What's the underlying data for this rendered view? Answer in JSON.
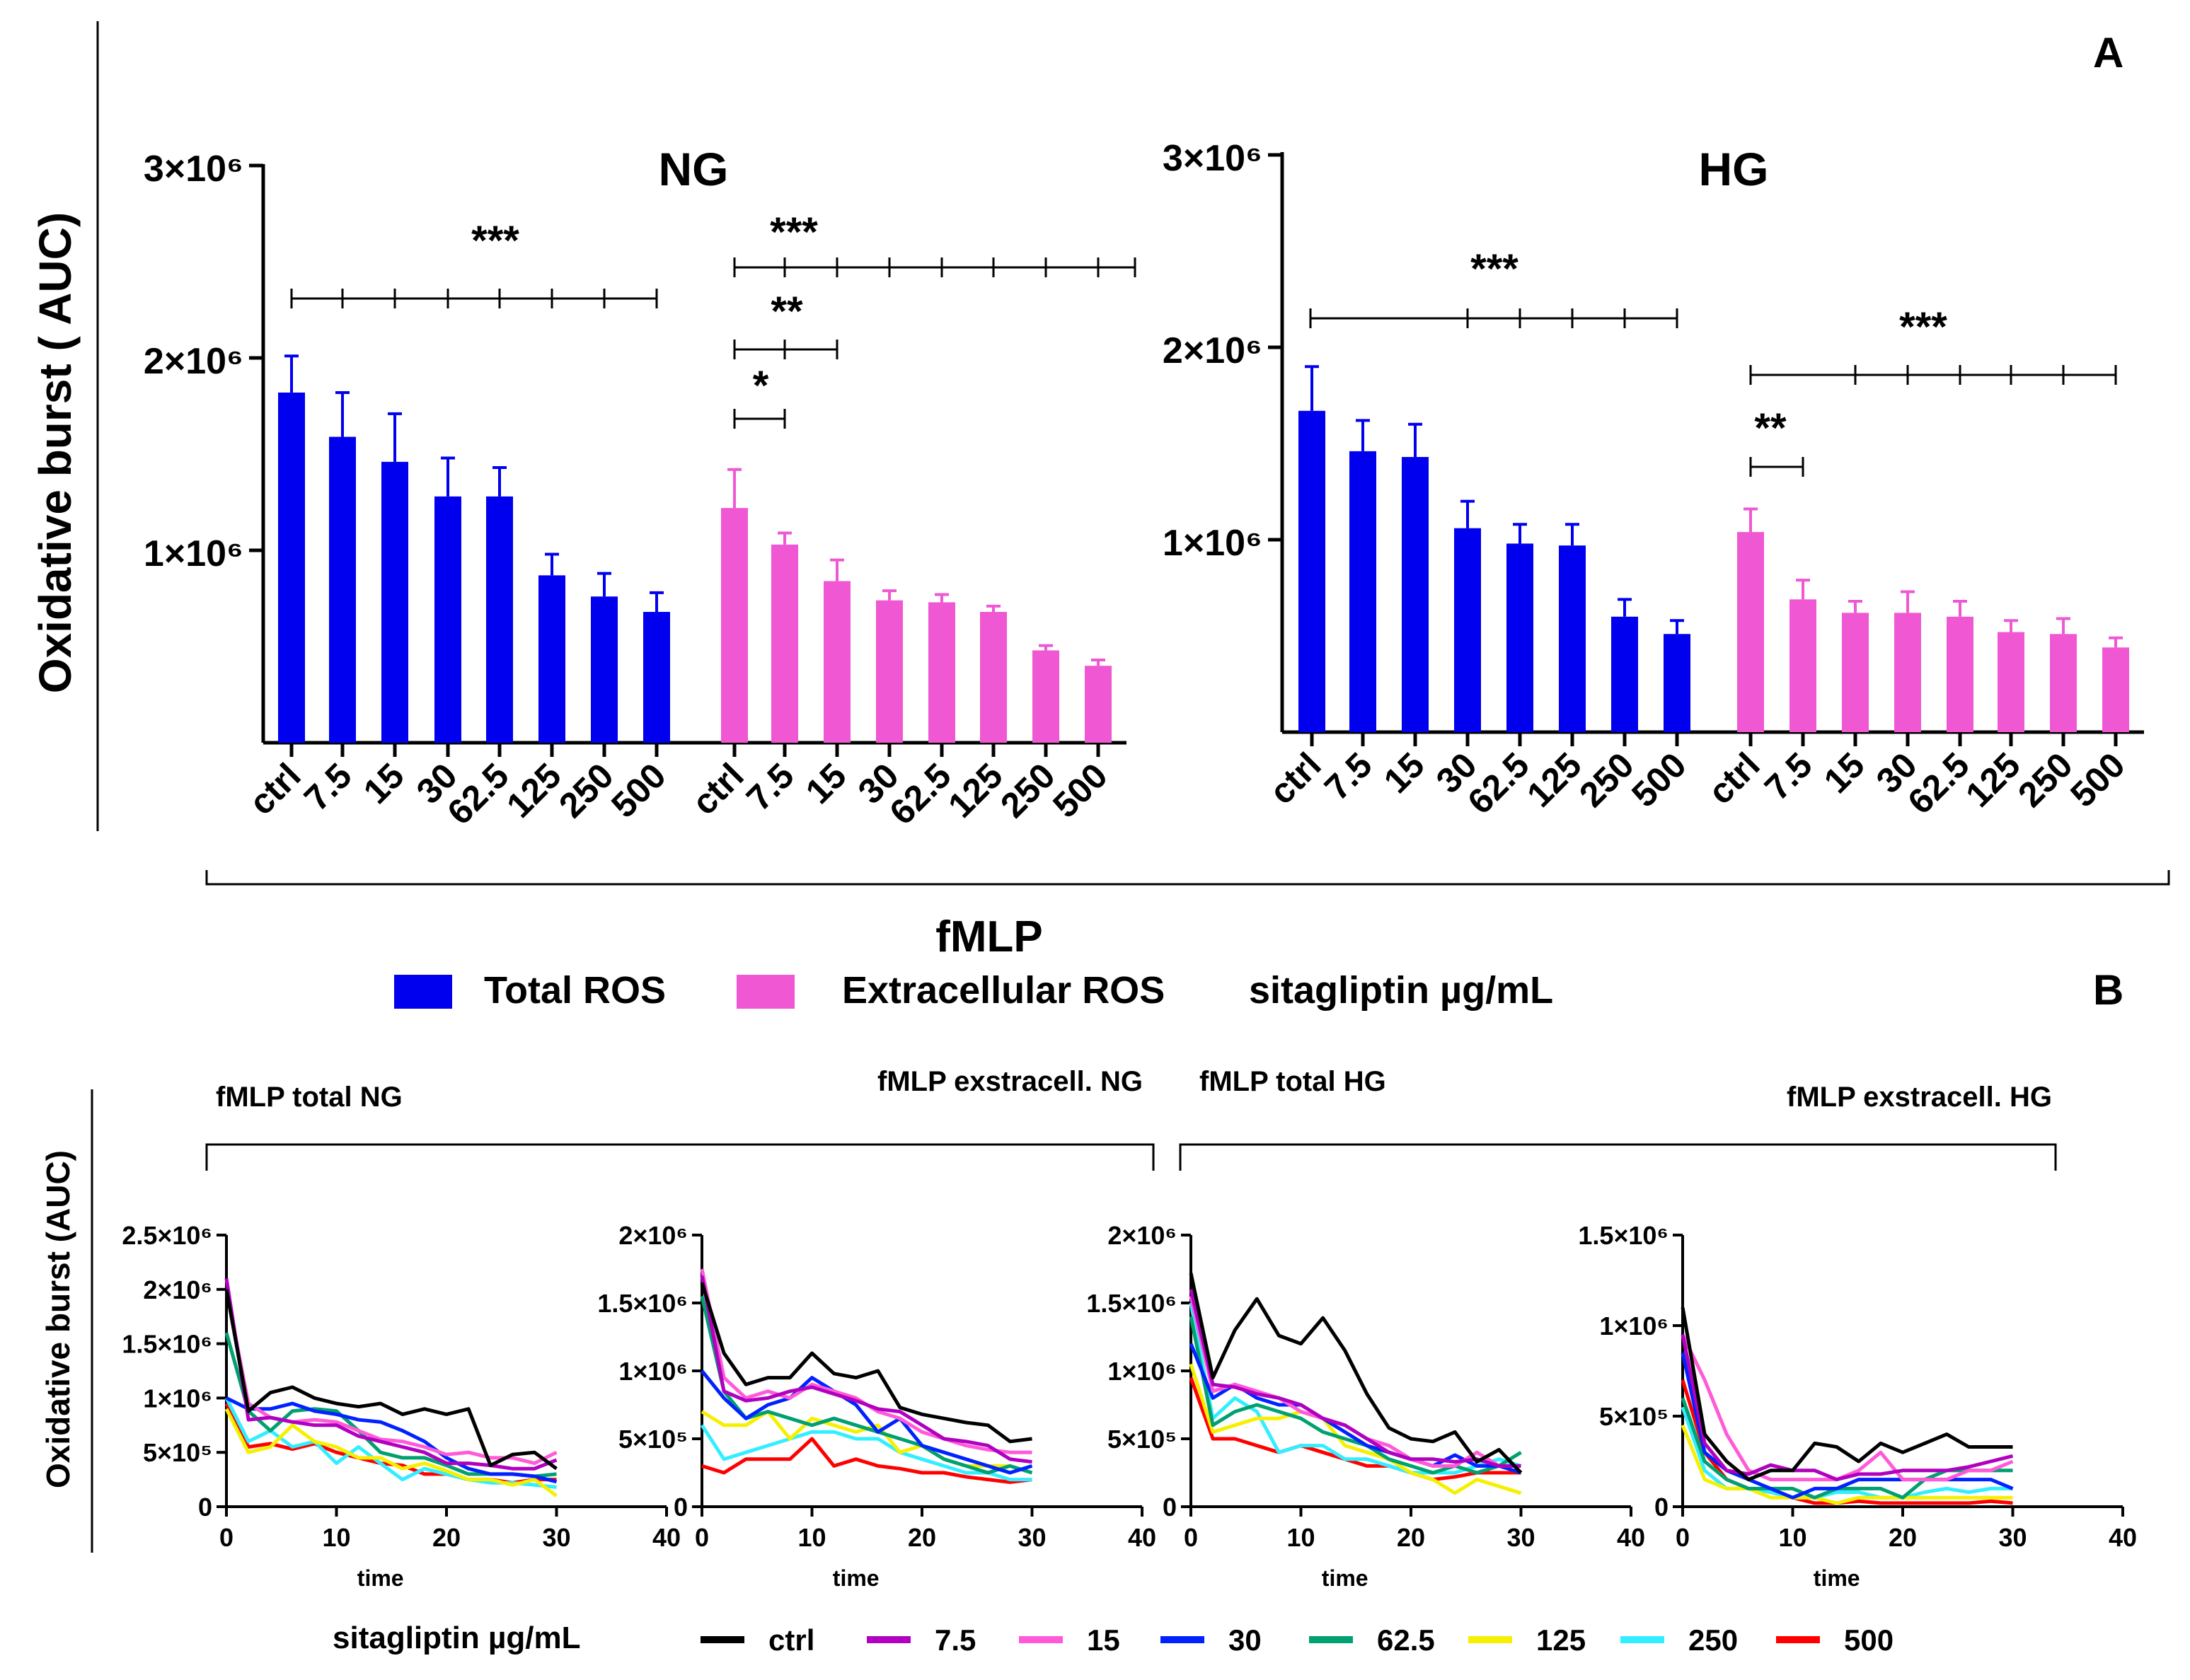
{
  "panel_labels": {
    "a": "A",
    "b": "B"
  },
  "top_ylabel": "Oxidative burst ( AUC)",
  "bottom_ylabel": "Oxidative burst (AUC)",
  "fmlp_label": "fMLP",
  "legend_top": {
    "total": "Total ROS",
    "extra": "Extracellular ROS",
    "unit": "sitagliptin µg/mL"
  },
  "colors": {
    "total": "#0000ee",
    "extra": "#ef58d2"
  },
  "line_colors": {
    "ctrl": "#000000",
    "7.5": "#b000c0",
    "15": "#ff5ad8",
    "30": "#0022ff",
    "62.5": "#00a070",
    "125": "#f6f000",
    "250": "#33eeff",
    "500": "#ff0000"
  },
  "line_legend": {
    "title": "sitagliptin µg/mL",
    "labels": [
      "ctrl",
      "7.5",
      "15",
      "30",
      "62.5",
      "125",
      "250",
      "500"
    ]
  },
  "chart_data": [
    {
      "type": "bar",
      "title": "NG",
      "ylabel": "Oxidative burst ( AUC)",
      "ylim": [
        0,
        3000000
      ],
      "yticks": [
        "1×10⁶",
        "2×10⁶",
        "3×10⁶"
      ],
      "categories": [
        "ctrl",
        "7.5",
        "15",
        "30",
        "62.5",
        "125",
        "250",
        "500"
      ],
      "series": [
        {
          "name": "Total ROS",
          "values": [
            1820000,
            1590000,
            1460000,
            1280000,
            1280000,
            870000,
            760000,
            680000
          ],
          "errors": [
            190000,
            230000,
            250000,
            200000,
            150000,
            110000,
            120000,
            100000
          ]
        },
        {
          "name": "Extracellular ROS",
          "values": [
            1220000,
            1030000,
            840000,
            740000,
            730000,
            680000,
            480000,
            400000
          ],
          "errors": [
            200000,
            60000,
            110000,
            50000,
            40000,
            30000,
            25000,
            30000
          ]
        }
      ],
      "significance": [
        {
          "label": "***",
          "series": "Total ROS"
        },
        {
          "label": "***",
          "series": "Extracellular ROS"
        },
        {
          "label": "**",
          "series": "Extracellular ROS"
        },
        {
          "label": "*",
          "series": "Extracellular ROS"
        }
      ]
    },
    {
      "type": "bar",
      "title": "HG",
      "ylabel": "Oxidative burst ( AUC)",
      "ylim": [
        0,
        3000000
      ],
      "yticks": [
        "1×10⁶",
        "2×10⁶",
        "3×10⁶"
      ],
      "categories": [
        "ctrl",
        "7.5",
        "15",
        "30",
        "62.5",
        "125",
        "250",
        "500"
      ],
      "series": [
        {
          "name": "Total ROS",
          "values": [
            1670000,
            1460000,
            1430000,
            1060000,
            980000,
            970000,
            600000,
            510000
          ],
          "errors": [
            230000,
            160000,
            170000,
            140000,
            100000,
            110000,
            90000,
            70000
          ]
        },
        {
          "name": "Extracellular ROS",
          "values": [
            1040000,
            690000,
            620000,
            620000,
            600000,
            520000,
            510000,
            440000
          ],
          "errors": [
            120000,
            100000,
            60000,
            110000,
            80000,
            60000,
            80000,
            50000
          ]
        }
      ],
      "significance": [
        {
          "label": "***",
          "series": "Total ROS"
        },
        {
          "label": "***",
          "series": "Extracellular ROS"
        },
        {
          "label": "**",
          "series": "Extracellular ROS"
        }
      ]
    },
    {
      "type": "line",
      "title": "fMLP total NG",
      "xlabel": "time",
      "ylabel": "Oxidative burst (AUC)",
      "xlim": [
        0,
        40
      ],
      "ylim": [
        0,
        2500000
      ],
      "xticks": [
        "0",
        "10",
        "20",
        "30",
        "40"
      ],
      "yticks": [
        "0",
        "5×10⁵",
        "1×10⁶",
        "1.5×10⁶",
        "2×10⁶",
        "2.5×10⁶"
      ],
      "x": [
        0,
        2,
        4,
        6,
        8,
        10,
        12,
        14,
        16,
        18,
        20,
        22,
        24,
        26,
        28,
        30
      ],
      "series": [
        {
          "name": "ctrl",
          "values": [
            2000000,
            880000,
            1050000,
            1100000,
            1000000,
            950000,
            920000,
            950000,
            850000,
            900000,
            850000,
            900000,
            380000,
            480000,
            500000,
            350000
          ]
        },
        {
          "name": "7.5",
          "values": [
            2100000,
            800000,
            820000,
            780000,
            750000,
            750000,
            650000,
            600000,
            550000,
            500000,
            400000,
            400000,
            380000,
            350000,
            350000,
            430000
          ]
        },
        {
          "name": "15",
          "values": [
            2000000,
            950000,
            820000,
            780000,
            800000,
            780000,
            700000,
            620000,
            600000,
            550000,
            480000,
            500000,
            450000,
            450000,
            400000,
            500000
          ]
        },
        {
          "name": "30",
          "values": [
            1000000,
            900000,
            900000,
            950000,
            880000,
            850000,
            800000,
            780000,
            700000,
            600000,
            450000,
            350000,
            300000,
            300000,
            280000,
            230000
          ]
        },
        {
          "name": "62.5",
          "values": [
            1600000,
            880000,
            700000,
            880000,
            900000,
            880000,
            700000,
            500000,
            450000,
            450000,
            380000,
            300000,
            300000,
            300000,
            280000,
            300000
          ]
        },
        {
          "name": "125",
          "values": [
            900000,
            500000,
            550000,
            750000,
            600000,
            550000,
            450000,
            450000,
            350000,
            400000,
            330000,
            250000,
            250000,
            200000,
            250000,
            100000
          ]
        },
        {
          "name": "250",
          "values": [
            1000000,
            600000,
            700000,
            550000,
            600000,
            400000,
            550000,
            400000,
            250000,
            350000,
            300000,
            250000,
            220000,
            220000,
            200000,
            180000
          ]
        },
        {
          "name": "500",
          "values": [
            950000,
            550000,
            580000,
            530000,
            580000,
            500000,
            450000,
            400000,
            380000,
            300000,
            300000,
            250000,
            250000,
            220000,
            250000,
            250000
          ]
        }
      ]
    },
    {
      "type": "line",
      "title": "fMLP exstracell. NG",
      "xlabel": "time",
      "ylabel": "Oxidative burst (AUC)",
      "xlim": [
        0,
        40
      ],
      "ylim": [
        0,
        2000000
      ],
      "xticks": [
        "0",
        "10",
        "20",
        "30",
        "40"
      ],
      "yticks": [
        "0",
        "5×10⁵",
        "1×10⁶",
        "1.5×10⁶",
        "2×10⁶"
      ],
      "x": [
        0,
        2,
        4,
        6,
        8,
        10,
        12,
        14,
        16,
        18,
        20,
        22,
        24,
        26,
        28,
        30
      ],
      "series": [
        {
          "name": "ctrl",
          "values": [
            1650000,
            1130000,
            900000,
            950000,
            950000,
            1130000,
            980000,
            950000,
            1000000,
            730000,
            680000,
            650000,
            620000,
            600000,
            480000,
            500000
          ]
        },
        {
          "name": "7.5",
          "values": [
            1700000,
            850000,
            780000,
            800000,
            850000,
            880000,
            830000,
            780000,
            720000,
            700000,
            600000,
            500000,
            480000,
            450000,
            350000,
            330000
          ]
        },
        {
          "name": "15",
          "values": [
            1750000,
            950000,
            800000,
            850000,
            800000,
            900000,
            850000,
            800000,
            700000,
            650000,
            550000,
            500000,
            450000,
            420000,
            400000,
            400000
          ]
        },
        {
          "name": "30",
          "values": [
            1000000,
            800000,
            650000,
            750000,
            800000,
            950000,
            850000,
            750000,
            550000,
            650000,
            450000,
            400000,
            350000,
            300000,
            250000,
            300000
          ]
        },
        {
          "name": "62.5",
          "values": [
            1550000,
            850000,
            650000,
            700000,
            650000,
            600000,
            650000,
            600000,
            550000,
            500000,
            450000,
            350000,
            300000,
            250000,
            300000,
            250000
          ]
        },
        {
          "name": "125",
          "values": [
            700000,
            600000,
            600000,
            700000,
            500000,
            650000,
            600000,
            550000,
            600000,
            400000,
            450000,
            350000,
            300000,
            300000,
            300000,
            250000
          ]
        },
        {
          "name": "250",
          "values": [
            600000,
            350000,
            400000,
            450000,
            500000,
            550000,
            550000,
            500000,
            500000,
            400000,
            350000,
            300000,
            250000,
            250000,
            200000,
            200000
          ]
        },
        {
          "name": "500",
          "values": [
            300000,
            250000,
            350000,
            350000,
            350000,
            500000,
            300000,
            350000,
            300000,
            280000,
            250000,
            250000,
            220000,
            200000,
            180000,
            200000
          ]
        }
      ]
    },
    {
      "type": "line",
      "title": "fMLP total HG",
      "xlabel": "time",
      "ylabel": "Oxidative burst (AUC)",
      "xlim": [
        0,
        40
      ],
      "ylim": [
        0,
        2000000
      ],
      "xticks": [
        "0",
        "10",
        "20",
        "30",
        "40"
      ],
      "yticks": [
        "0",
        "5×10⁵",
        "1×10⁶",
        "1.5×10⁶",
        "2×10⁶"
      ],
      "x": [
        0,
        2,
        4,
        6,
        8,
        10,
        12,
        14,
        16,
        18,
        20,
        22,
        24,
        26,
        28,
        30
      ],
      "series": [
        {
          "name": "ctrl",
          "values": [
            1720000,
            950000,
            1300000,
            1530000,
            1260000,
            1200000,
            1390000,
            1150000,
            830000,
            580000,
            500000,
            480000,
            550000,
            330000,
            420000,
            250000
          ]
        },
        {
          "name": "7.5",
          "values": [
            1600000,
            900000,
            880000,
            830000,
            800000,
            750000,
            650000,
            600000,
            500000,
            400000,
            350000,
            350000,
            330000,
            350000,
            300000,
            300000
          ]
        },
        {
          "name": "15",
          "values": [
            1550000,
            850000,
            900000,
            850000,
            800000,
            700000,
            650000,
            600000,
            500000,
            450000,
            350000,
            300000,
            300000,
            400000,
            300000,
            300000
          ]
        },
        {
          "name": "30",
          "values": [
            1200000,
            800000,
            900000,
            800000,
            750000,
            750000,
            650000,
            550000,
            450000,
            400000,
            350000,
            300000,
            380000,
            300000,
            300000,
            250000
          ]
        },
        {
          "name": "62.5",
          "values": [
            1400000,
            600000,
            700000,
            750000,
            700000,
            650000,
            550000,
            500000,
            450000,
            350000,
            300000,
            250000,
            300000,
            250000,
            300000,
            400000
          ]
        },
        {
          "name": "125",
          "values": [
            1050000,
            550000,
            600000,
            650000,
            650000,
            700000,
            650000,
            450000,
            400000,
            350000,
            250000,
            200000,
            100000,
            200000,
            150000,
            100000
          ]
        },
        {
          "name": "250",
          "values": [
            1500000,
            650000,
            800000,
            700000,
            400000,
            450000,
            450000,
            350000,
            350000,
            300000,
            250000,
            250000,
            250000,
            300000,
            350000,
            300000
          ]
        },
        {
          "name": "500",
          "values": [
            950000,
            500000,
            500000,
            450000,
            400000,
            450000,
            400000,
            350000,
            300000,
            300000,
            250000,
            200000,
            220000,
            250000,
            250000,
            250000
          ]
        }
      ]
    },
    {
      "type": "line",
      "title": "fMLP exstracell. HG",
      "xlabel": "time",
      "ylabel": "Oxidative burst (AUC)",
      "xlim": [
        0,
        40
      ],
      "ylim": [
        0,
        1500000
      ],
      "xticks": [
        "0",
        "10",
        "20",
        "30",
        "40"
      ],
      "yticks": [
        "0",
        "5×10⁵",
        "1×10⁶",
        "1.5×10⁶"
      ],
      "x": [
        0,
        2,
        4,
        6,
        8,
        10,
        12,
        14,
        16,
        18,
        20,
        22,
        24,
        26,
        28,
        30
      ],
      "series": [
        {
          "name": "ctrl",
          "values": [
            1100000,
            400000,
            250000,
            150000,
            200000,
            200000,
            350000,
            330000,
            250000,
            350000,
            300000,
            350000,
            400000,
            330000,
            330000,
            330000
          ]
        },
        {
          "name": "7.5",
          "values": [
            950000,
            350000,
            200000,
            180000,
            230000,
            200000,
            200000,
            150000,
            180000,
            180000,
            200000,
            200000,
            200000,
            220000,
            250000,
            280000
          ]
        },
        {
          "name": "15",
          "values": [
            950000,
            700000,
            400000,
            200000,
            150000,
            150000,
            150000,
            150000,
            200000,
            300000,
            150000,
            150000,
            150000,
            200000,
            200000,
            250000
          ]
        },
        {
          "name": "30",
          "values": [
            850000,
            300000,
            200000,
            150000,
            100000,
            50000,
            100000,
            100000,
            150000,
            150000,
            150000,
            150000,
            150000,
            150000,
            150000,
            100000
          ]
        },
        {
          "name": "62.5",
          "values": [
            600000,
            250000,
            150000,
            100000,
            100000,
            100000,
            50000,
            100000,
            100000,
            100000,
            50000,
            150000,
            200000,
            200000,
            200000,
            200000
          ]
        },
        {
          "name": "125",
          "values": [
            450000,
            150000,
            100000,
            100000,
            50000,
            50000,
            50000,
            20000,
            50000,
            50000,
            50000,
            50000,
            50000,
            50000,
            50000,
            50000
          ]
        },
        {
          "name": "250",
          "values": [
            550000,
            200000,
            100000,
            100000,
            80000,
            50000,
            50000,
            80000,
            80000,
            50000,
            50000,
            80000,
            100000,
            80000,
            100000,
            100000
          ]
        },
        {
          "name": "500",
          "values": [
            700000,
            300000,
            150000,
            100000,
            80000,
            50000,
            20000,
            20000,
            30000,
            20000,
            20000,
            20000,
            20000,
            20000,
            30000,
            20000
          ]
        }
      ]
    }
  ]
}
